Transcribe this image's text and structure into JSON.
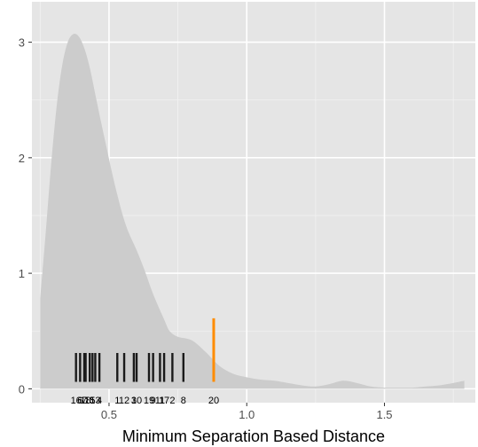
{
  "chart_data": {
    "type": "area",
    "title": "",
    "xlabel": "Minimum Separation Based Distance",
    "ylabel": "",
    "xlim": [
      0.22,
      1.83
    ],
    "ylim": [
      -0.12,
      3.35
    ],
    "x_ticks": [
      0.5,
      1.0,
      1.5
    ],
    "x_tick_labels": [
      "0.5",
      "1.0",
      "1.5"
    ],
    "y_ticks": [
      0,
      1,
      2,
      3
    ],
    "y_tick_labels": [
      "0",
      "1",
      "2",
      "3"
    ],
    "grid": true,
    "density": {
      "x": [
        0.25,
        0.27,
        0.29,
        0.31,
        0.33,
        0.35,
        0.37,
        0.39,
        0.41,
        0.43,
        0.45,
        0.47,
        0.49,
        0.51,
        0.53,
        0.55,
        0.57,
        0.6,
        0.63,
        0.66,
        0.7,
        0.72,
        0.75,
        0.8,
        0.85,
        0.9,
        0.95,
        1.0,
        1.05,
        1.1,
        1.15,
        1.2,
        1.25,
        1.3,
        1.35,
        1.4,
        1.45,
        1.5,
        1.55,
        1.6,
        1.65,
        1.7,
        1.75,
        1.79
      ],
      "y": [
        0.78,
        1.35,
        1.95,
        2.45,
        2.8,
        3.0,
        3.07,
        3.05,
        2.95,
        2.78,
        2.55,
        2.32,
        2.1,
        1.88,
        1.68,
        1.5,
        1.36,
        1.2,
        1.02,
        0.82,
        0.6,
        0.5,
        0.45,
        0.42,
        0.32,
        0.2,
        0.13,
        0.1,
        0.08,
        0.07,
        0.05,
        0.03,
        0.02,
        0.04,
        0.07,
        0.05,
        0.02,
        0.01,
        0.01,
        0.01,
        0.02,
        0.03,
        0.05,
        0.07
      ]
    },
    "rug": [
      {
        "label": "16",
        "x": 0.38,
        "color": "#1a1a1a"
      },
      {
        "label": "6",
        "x": 0.395,
        "color": "#1a1a1a"
      },
      {
        "label": "7",
        "x": 0.41,
        "color": "#1a1a1a"
      },
      {
        "label": "18",
        "x": 0.415,
        "color": "#1a1a1a"
      },
      {
        "label": "15",
        "x": 0.43,
        "color": "#1a1a1a"
      },
      {
        "label": "5",
        "x": 0.44,
        "color": "#1a1a1a"
      },
      {
        "label": "13",
        "x": 0.45,
        "color": "#1a1a1a"
      },
      {
        "label": "4",
        "x": 0.465,
        "color": "#1a1a1a"
      },
      {
        "label": "1",
        "x": 0.53,
        "color": "#1a1a1a"
      },
      {
        "label": "12",
        "x": 0.555,
        "color": "#1a1a1a"
      },
      {
        "label": "3",
        "x": 0.59,
        "color": "#1a1a1a"
      },
      {
        "label": "10",
        "x": 0.6,
        "color": "#1a1a1a"
      },
      {
        "label": "19",
        "x": 0.645,
        "color": "#1a1a1a"
      },
      {
        "label": "9",
        "x": 0.66,
        "color": "#1a1a1a"
      },
      {
        "label": "11",
        "x": 0.685,
        "color": "#1a1a1a"
      },
      {
        "label": "17",
        "x": 0.7,
        "color": "#1a1a1a"
      },
      {
        "label": "2",
        "x": 0.73,
        "color": "#1a1a1a"
      },
      {
        "label": "8",
        "x": 0.77,
        "color": "#1a1a1a"
      },
      {
        "label": "20",
        "x": 0.88,
        "color": "#ff8c00"
      }
    ],
    "colors": {
      "panel": "#e5e5e5",
      "grid_major": "#ffffff",
      "grid_minor": "#f2f2f2",
      "density_fill": "#cccccc",
      "highlight": "#ff8c00"
    }
  }
}
